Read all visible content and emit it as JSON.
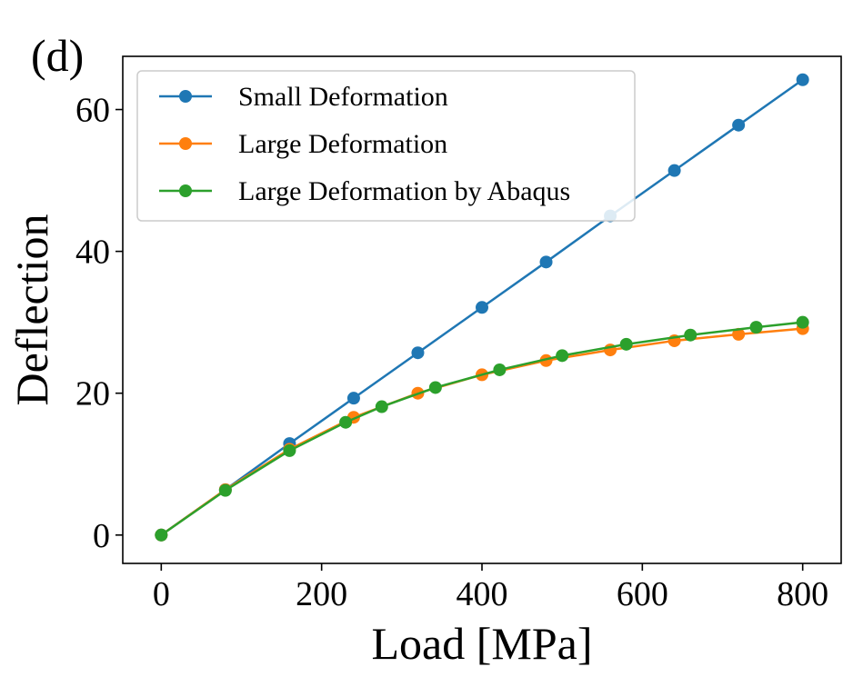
{
  "panel_label": "(d)",
  "colors": {
    "small": "#1f77b4",
    "large": "#ff7f0e",
    "abaqus": "#2ca02c"
  },
  "chart_data": {
    "type": "line",
    "title": "",
    "xlabel": "Load [MPa]",
    "ylabel": "Deflection",
    "xlim": [
      -48,
      848
    ],
    "ylim": [
      -4,
      67.5
    ],
    "xticks": [
      0,
      200,
      400,
      600,
      800
    ],
    "yticks": [
      0,
      20,
      40,
      60
    ],
    "grid": false,
    "legend_position": "top-left",
    "series": [
      {
        "name": "Small Deformation",
        "color": "#1f77b4",
        "x": [
          0,
          80,
          160,
          240,
          320,
          400,
          480,
          560,
          640,
          720,
          800
        ],
        "y": [
          0,
          6.4,
          12.9,
          19.3,
          25.7,
          32.1,
          38.5,
          45.0,
          51.4,
          57.8,
          64.2
        ]
      },
      {
        "name": "Large Deformation",
        "color": "#ff7f0e",
        "x": [
          0,
          80,
          160,
          240,
          320,
          400,
          480,
          560,
          640,
          720,
          800
        ],
        "y": [
          0,
          6.4,
          12.1,
          16.6,
          20.0,
          22.6,
          24.6,
          26.1,
          27.4,
          28.3,
          29.1
        ]
      },
      {
        "name": "Large Deformation by Abaqus",
        "color": "#2ca02c",
        "x": [
          0,
          80,
          160,
          230,
          275,
          342,
          422,
          500,
          580,
          660,
          742,
          800
        ],
        "y": [
          0,
          6.3,
          11.9,
          15.9,
          18.1,
          20.8,
          23.3,
          25.3,
          26.9,
          28.2,
          29.3,
          30.0
        ]
      }
    ]
  }
}
